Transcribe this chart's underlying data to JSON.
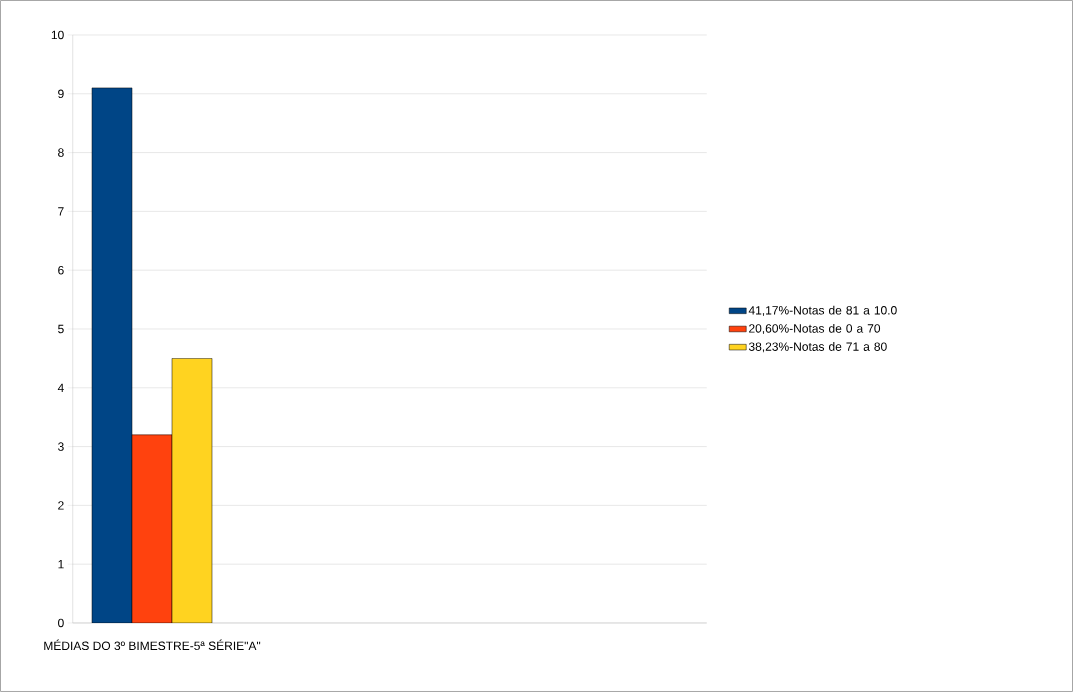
{
  "chart_data": {
    "type": "bar",
    "categories": [
      "MÉDIAS DO 3º BIMESTRE-5ª SÉRIE\"A\"",
      null,
      null,
      null
    ],
    "series": [
      {
        "name": "41,17%-Notas de 81 a 10.0",
        "color": "#004586",
        "values": [
          9.1,
          null,
          null,
          null
        ]
      },
      {
        "name": "20,60%-Notas de 0 a 70",
        "color": "#ff420e",
        "values": [
          3.2,
          null,
          null,
          null
        ]
      },
      {
        "name": "38,23%-Notas de 71 a 80",
        "color": "#ffd320",
        "values": [
          4.5,
          null,
          null,
          null
        ]
      }
    ],
    "ylim": [
      0,
      10
    ],
    "yticks": [
      0,
      1,
      2,
      3,
      4,
      5,
      6,
      7,
      8,
      9,
      10
    ],
    "grid": "y",
    "legend": "right"
  }
}
